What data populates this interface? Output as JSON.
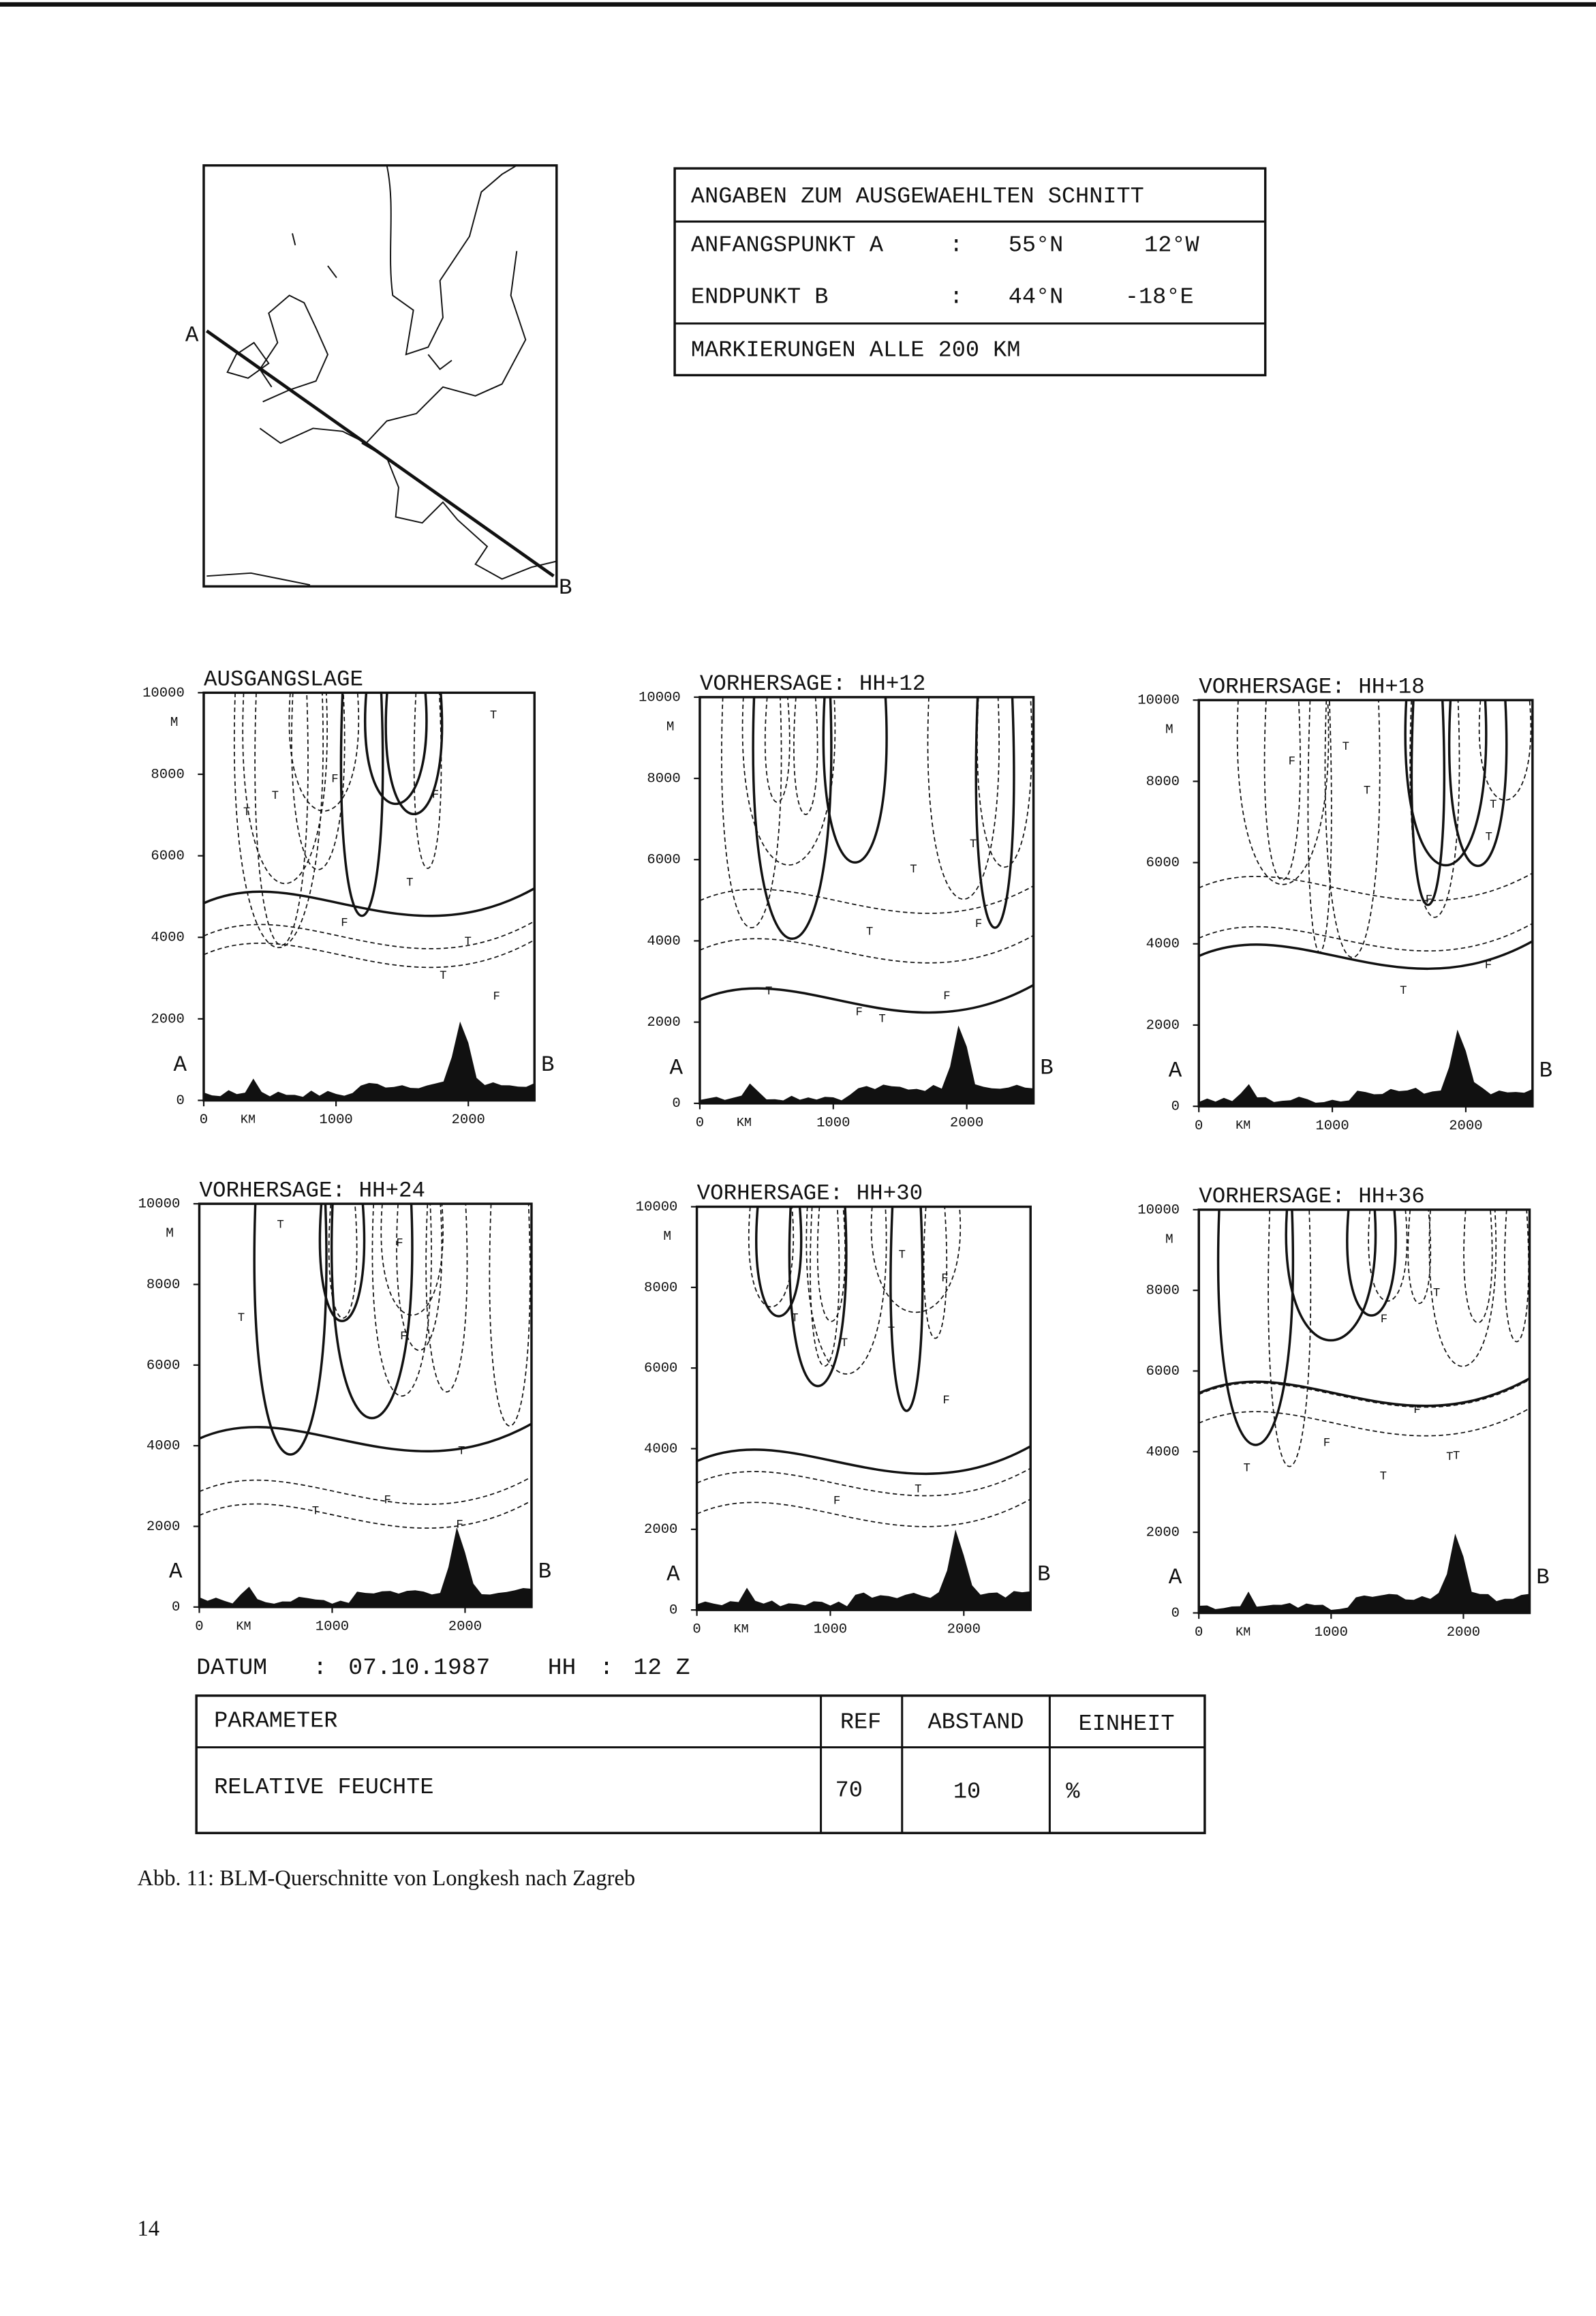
{
  "map": {
    "label_a": "A",
    "label_b": "B"
  },
  "info_box": {
    "title": "ANGABEN ZUM AUSGEWAEHLTEN SCHNITT",
    "rows": [
      [
        "ANFANGSPUNKT A",
        ":",
        "55°N",
        "12°W"
      ],
      [
        "ENDPUNKT B",
        ":",
        "44°N",
        "-18°E"
      ]
    ],
    "note": "MARKIERUNGEN ALLE 200 KM"
  },
  "axes": {
    "y_unit": "M",
    "y_ticks": [
      10000,
      8000,
      6000,
      4000,
      2000,
      0
    ],
    "ylim": [
      0,
      10000
    ],
    "x_unit": "KM",
    "x_ticks": [
      0,
      1000,
      2000
    ],
    "xlim": [
      0,
      2500
    ],
    "start": "A",
    "end": "B"
  },
  "panels": [
    {
      "title": "AUSGANGSLAGE",
      "labels": [
        "T",
        "T",
        "F",
        "T",
        "T",
        "T",
        "F",
        "F",
        "F",
        "T"
      ]
    },
    {
      "title": "VORHERSAGE: HH+12",
      "labels": [
        "T",
        "T",
        "F",
        "F",
        "T",
        "T",
        "F",
        "T"
      ]
    },
    {
      "title": "VORHERSAGE: HH+18",
      "labels": [
        "T",
        "T",
        "T",
        "F",
        "T",
        "F",
        "F",
        "T"
      ]
    },
    {
      "title": "VORHERSAGE: HH+24",
      "labels": [
        "T",
        "F",
        "T",
        "F",
        "T",
        "F",
        "F",
        "T"
      ]
    },
    {
      "title": "VORHERSAGE: HH+30",
      "labels": [
        "T",
        "F",
        "T",
        "T",
        "F",
        "F",
        "T",
        "T"
      ]
    },
    {
      "title": "VORHERSAGE: HH+36",
      "labels": [
        "T",
        "F",
        "T",
        "F",
        "T",
        "T",
        "F",
        "T"
      ]
    }
  ],
  "datum": {
    "label": "DATUM",
    "sep": ":",
    "date": "07.10.1987",
    "hh_label": "HH",
    "hh": "12 Z"
  },
  "table": {
    "headers": [
      "PARAMETER",
      "REF",
      "ABSTAND",
      "EINHEIT"
    ],
    "rows": [
      [
        "RELATIVE FEUCHTE",
        70,
        10,
        "%"
      ]
    ]
  },
  "caption": "Abb. 11: BLM-Querschnitte von Longkesh nach Zagreb",
  "page_number": "14"
}
